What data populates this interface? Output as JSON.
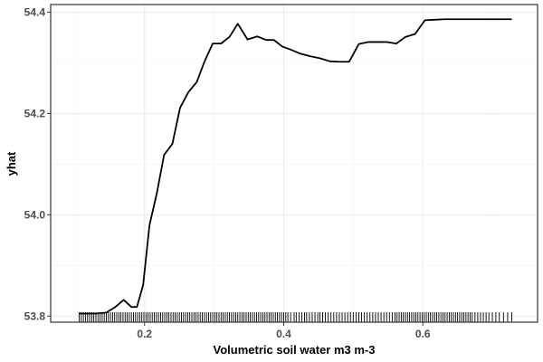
{
  "chart_data": {
    "type": "line",
    "title": "",
    "xlabel": "Volumetric soil water m3 m-3",
    "ylabel": "yhat",
    "xlim": [
      0.065,
      0.765
    ],
    "ylim": [
      53.788,
      54.415
    ],
    "x_ticks": [
      0.2,
      0.4,
      0.6
    ],
    "x_tick_labels": [
      "0.2",
      "0.4",
      "0.6"
    ],
    "y_ticks": [
      53.8,
      54.0,
      54.2,
      54.4
    ],
    "y_tick_labels": [
      "53.8",
      "54.0",
      "54.2",
      "54.4"
    ],
    "grid": true,
    "legend": "none",
    "line_color": "#000000",
    "rug_color": "#000000",
    "series": [
      {
        "x": [
          0.106,
          0.118,
          0.131,
          0.145,
          0.158,
          0.17,
          0.181,
          0.189,
          0.198,
          0.207,
          0.218,
          0.228,
          0.24,
          0.251,
          0.263,
          0.275,
          0.286,
          0.298,
          0.31,
          0.322,
          0.334,
          0.348,
          0.362,
          0.375,
          0.386,
          0.398,
          0.41,
          0.424,
          0.438,
          0.452,
          0.466,
          0.48,
          0.494,
          0.508,
          0.522,
          0.534,
          0.548,
          0.562,
          0.575,
          0.589,
          0.603,
          0.617,
          0.631,
          0.645,
          0.658,
          0.672,
          0.686,
          0.7,
          0.714,
          0.728
        ],
        "y": [
          53.805,
          53.805,
          53.805,
          53.807,
          53.818,
          53.832,
          53.818,
          53.818,
          53.862,
          53.979,
          54.045,
          54.118,
          54.14,
          54.211,
          54.242,
          54.262,
          54.302,
          54.338,
          54.338,
          54.351,
          54.377,
          54.346,
          54.352,
          54.345,
          54.345,
          54.332,
          54.326,
          54.318,
          54.313,
          54.309,
          54.303,
          54.302,
          54.302,
          54.337,
          54.341,
          54.341,
          54.341,
          54.338,
          54.351,
          54.357,
          54.384,
          54.385,
          54.386,
          54.386,
          54.386,
          54.386,
          54.386,
          54.386,
          54.386,
          54.386
        ]
      }
    ],
    "rug_x": [
      0.106,
      0.109,
      0.112,
      0.115,
      0.118,
      0.121,
      0.124,
      0.127,
      0.13,
      0.133,
      0.136,
      0.139,
      0.142,
      0.145,
      0.148,
      0.151,
      0.154,
      0.157,
      0.16,
      0.163,
      0.166,
      0.169,
      0.172,
      0.175,
      0.178,
      0.181,
      0.184,
      0.187,
      0.19,
      0.193,
      0.196,
      0.199,
      0.202,
      0.205,
      0.208,
      0.211,
      0.214,
      0.217,
      0.22,
      0.223,
      0.226,
      0.229,
      0.232,
      0.235,
      0.238,
      0.241,
      0.244,
      0.247,
      0.25,
      0.253,
      0.256,
      0.259,
      0.262,
      0.265,
      0.268,
      0.271,
      0.274,
      0.277,
      0.28,
      0.283,
      0.286,
      0.289,
      0.292,
      0.295,
      0.298,
      0.301,
      0.304,
      0.307,
      0.31,
      0.313,
      0.316,
      0.319,
      0.322,
      0.325,
      0.328,
      0.331,
      0.334,
      0.337,
      0.34,
      0.343,
      0.346,
      0.349,
      0.352,
      0.355,
      0.358,
      0.361,
      0.364,
      0.367,
      0.37,
      0.373,
      0.376,
      0.379,
      0.382,
      0.385,
      0.388,
      0.391,
      0.394,
      0.397,
      0.4,
      0.403,
      0.406,
      0.41,
      0.415,
      0.418,
      0.422,
      0.426,
      0.43,
      0.433,
      0.437,
      0.441,
      0.445,
      0.449,
      0.452,
      0.456,
      0.46,
      0.464,
      0.468,
      0.472,
      0.476,
      0.48,
      0.484,
      0.488,
      0.492,
      0.496,
      0.5,
      0.504,
      0.508,
      0.512,
      0.516,
      0.52,
      0.524,
      0.528,
      0.532,
      0.536,
      0.54,
      0.544,
      0.548,
      0.552,
      0.556,
      0.56,
      0.563,
      0.566,
      0.569,
      0.572,
      0.575,
      0.578,
      0.581,
      0.584,
      0.587,
      0.59,
      0.593,
      0.596,
      0.599,
      0.602,
      0.605,
      0.608,
      0.611,
      0.614,
      0.617,
      0.62,
      0.623,
      0.626,
      0.629,
      0.632,
      0.635,
      0.638,
      0.641,
      0.644,
      0.647,
      0.65,
      0.653,
      0.656,
      0.659,
      0.662,
      0.665,
      0.668,
      0.671,
      0.675,
      0.679,
      0.683,
      0.687,
      0.691,
      0.695,
      0.7,
      0.705,
      0.71,
      0.716,
      0.722,
      0.728
    ]
  }
}
